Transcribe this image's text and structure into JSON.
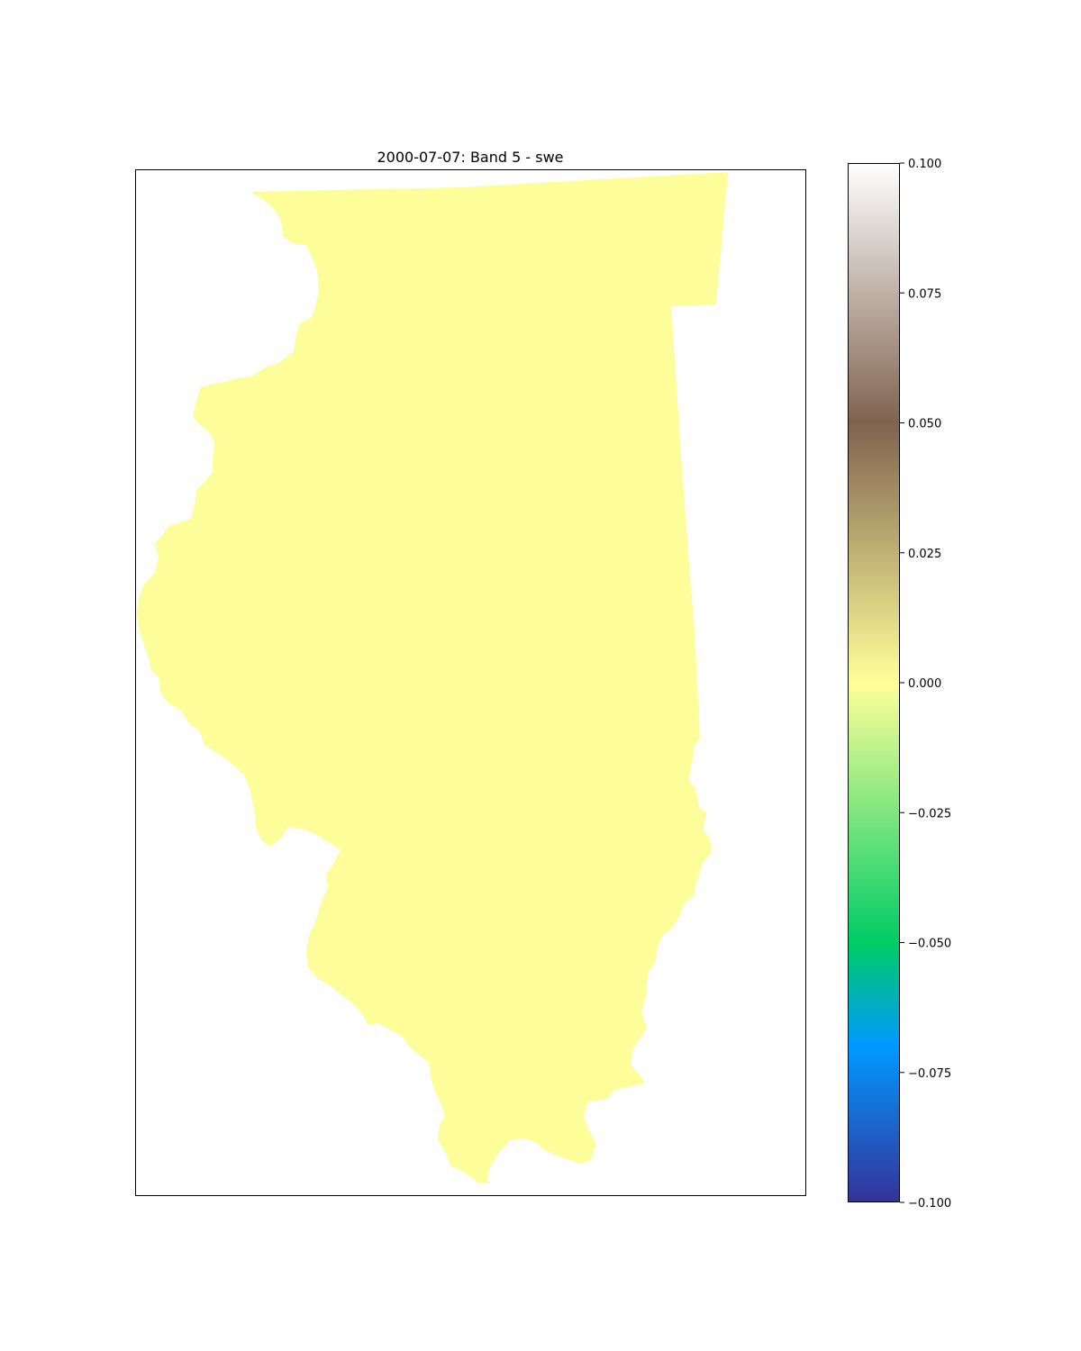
{
  "title": "2000-07-07: Band 5 - swe",
  "map": {
    "region_fill": "#fdfd99",
    "frame_color": "#000000"
  },
  "colorbar": {
    "colormap": "terrain",
    "range": [
      -0.1,
      0.1
    ],
    "stops": [
      "#333399",
      "#0099ff",
      "#00cc66",
      "#ffff99",
      "#80634f",
      "#ffffff"
    ],
    "ticks": [
      {
        "value": 0.1,
        "label": "0.100"
      },
      {
        "value": 0.075,
        "label": "0.075"
      },
      {
        "value": 0.05,
        "label": "0.050"
      },
      {
        "value": 0.025,
        "label": "0.025"
      },
      {
        "value": 0.0,
        "label": "0.000"
      },
      {
        "value": -0.025,
        "label": "−0.025"
      },
      {
        "value": -0.05,
        "label": "−0.050"
      },
      {
        "value": -0.075,
        "label": "−0.075"
      },
      {
        "value": -0.1,
        "label": "−0.100"
      }
    ]
  }
}
